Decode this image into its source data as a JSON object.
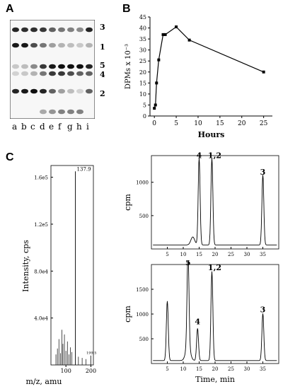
{
  "panels": {
    "A": {
      "letter": "A",
      "band_labels": [
        "3",
        "1",
        "5",
        "4",
        "2"
      ],
      "lanes": [
        "a",
        "b",
        "c",
        "d",
        "e",
        "f",
        "g",
        "h",
        "i"
      ]
    },
    "B": {
      "letter": "B",
      "xlabel": "Hours",
      "ylabel": "DPMs x 10⁻³"
    },
    "C": {
      "letter": "C",
      "ms": {
        "ylabel": "Intensity, cps",
        "xlabel": "m/z, amu",
        "peak_label": "137.9",
        "small_label": "199.5"
      },
      "hplc_top": {
        "ylabel": "cpm",
        "peaks": [
          "4",
          "1,2",
          "3"
        ]
      },
      "hplc_bottom": {
        "ylabel": "cpm",
        "xlabel": "Time, min",
        "peaks": [
          "5",
          "4",
          "1,2",
          "3"
        ]
      }
    }
  },
  "chart_data": [
    {
      "type": "line",
      "panel": "B",
      "xlabel": "Hours",
      "ylabel": "DPMs x 10⁻³",
      "x": [
        0,
        0.25,
        0.5,
        1,
        2,
        2.5,
        5,
        8,
        25
      ],
      "y": [
        3.5,
        5,
        15,
        25.5,
        37,
        37,
        40.5,
        34.5,
        20
      ],
      "xlim": [
        -1,
        27
      ],
      "ylim": [
        0,
        45
      ],
      "xticks": [
        "0",
        "5",
        "10",
        "15",
        "20",
        "25"
      ],
      "yticks": [
        "0",
        "5",
        "10",
        "15",
        "20",
        "25",
        "30",
        "35",
        "40",
        "45"
      ]
    },
    {
      "type": "bar",
      "panel": "C-ms",
      "xlabel": "m/z, amu",
      "ylabel": "Intensity, cps",
      "xticks": [
        "100",
        "200"
      ],
      "yticks": [
        "4.0e4",
        "8.0e4",
        "1.2e5",
        "1.6e5"
      ],
      "peaks": [
        {
          "mz": 137.9,
          "intensity": 165000,
          "label": "137.9"
        },
        {
          "mz": 199.5,
          "intensity": 8000,
          "label": "199.5"
        }
      ]
    },
    {
      "type": "line",
      "panel": "C-top",
      "xlabel": "",
      "ylabel": "cpm",
      "xticks": [
        "5",
        "10",
        "15",
        "20",
        "25",
        "30",
        "35"
      ],
      "yticks": [
        "500",
        "1000"
      ],
      "peaks": [
        {
          "t": 15,
          "cpm": 1300,
          "label": "4"
        },
        {
          "t": 19,
          "cpm": 1300,
          "label": "1,2"
        },
        {
          "t": 35,
          "cpm": 1050,
          "label": "3"
        }
      ]
    },
    {
      "type": "line",
      "panel": "C-bottom",
      "xlabel": "Time, min",
      "ylabel": "cpm",
      "xticks": [
        "5",
        "10",
        "15",
        "20",
        "25",
        "30",
        "35"
      ],
      "yticks": [
        "500",
        "1000",
        "1500"
      ],
      "peaks": [
        {
          "t": 5,
          "cpm": 1200,
          "label": ""
        },
        {
          "t": 11.5,
          "cpm": 1900,
          "label": "5"
        },
        {
          "t": 14.5,
          "cpm": 650,
          "label": "4"
        },
        {
          "t": 19,
          "cpm": 1800,
          "label": "1,2"
        },
        {
          "t": 35,
          "cpm": 950,
          "label": "3"
        }
      ]
    }
  ]
}
